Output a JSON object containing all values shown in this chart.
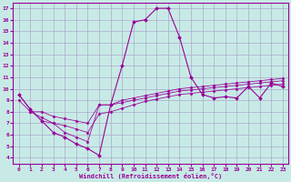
{
  "xlabel": "Windchill (Refroidissement éolien,°C)",
  "bg_color": "#c8eae6",
  "grid_color": "#aaaacc",
  "line_color": "#990099",
  "x_ticks": [
    0,
    1,
    2,
    3,
    4,
    5,
    6,
    7,
    8,
    9,
    10,
    11,
    12,
    13,
    14,
    15,
    16,
    17,
    18,
    19,
    20,
    21,
    22,
    23
  ],
  "y_ticks": [
    4,
    5,
    6,
    7,
    8,
    9,
    10,
    11,
    12,
    13,
    14,
    15,
    16,
    17
  ],
  "xlim": [
    -0.5,
    23.5
  ],
  "ylim": [
    3.5,
    17.5
  ],
  "curve1_x": [
    0,
    1,
    2,
    3,
    4,
    5,
    6,
    7,
    8,
    9,
    10,
    11,
    12,
    13,
    14,
    15,
    16,
    17,
    18,
    19,
    20,
    21,
    22,
    23
  ],
  "curve1_y": [
    9.5,
    8.2,
    7.2,
    6.2,
    5.8,
    5.2,
    4.8,
    4.2,
    8.6,
    12.0,
    15.8,
    16.0,
    17.0,
    17.0,
    14.5,
    11.0,
    9.5,
    9.2,
    9.3,
    9.2,
    10.2,
    9.2,
    10.5,
    10.2
  ],
  "curve2_x": [
    0,
    1,
    2,
    3,
    4,
    5,
    6,
    7,
    8,
    9,
    10,
    11,
    12,
    13,
    14,
    15,
    16,
    17,
    18,
    19,
    20,
    21,
    22,
    23
  ],
  "curve2_y": [
    9.5,
    8.2,
    7.2,
    7.0,
    6.2,
    5.8,
    5.4,
    8.6,
    8.6,
    9.0,
    9.2,
    9.4,
    9.6,
    9.8,
    10.0,
    10.1,
    10.2,
    10.3,
    10.4,
    10.5,
    10.6,
    10.7,
    10.8,
    10.9
  ],
  "curve3_x": [
    0,
    1,
    2,
    3,
    4,
    5,
    6,
    7,
    8,
    9,
    10,
    11,
    12,
    13,
    14,
    15,
    16,
    17,
    18,
    19,
    20,
    21,
    22,
    23
  ],
  "curve3_y": [
    9.0,
    8.0,
    7.5,
    7.0,
    6.8,
    6.5,
    6.2,
    7.8,
    8.0,
    8.3,
    8.6,
    8.9,
    9.1,
    9.3,
    9.5,
    9.6,
    9.7,
    9.8,
    9.9,
    10.0,
    10.1,
    10.2,
    10.3,
    10.4
  ],
  "curve4_x": [
    1,
    2,
    3,
    4,
    5,
    6,
    7,
    8,
    9,
    10,
    11,
    12,
    13,
    14,
    15,
    16,
    17,
    18,
    19,
    20,
    21,
    22,
    23
  ],
  "curve4_y": [
    8.0,
    8.0,
    7.6,
    7.4,
    7.2,
    7.0,
    8.6,
    8.6,
    8.8,
    9.0,
    9.2,
    9.4,
    9.6,
    9.8,
    9.9,
    10.0,
    10.1,
    10.2,
    10.3,
    10.4,
    10.5,
    10.6,
    10.7
  ]
}
